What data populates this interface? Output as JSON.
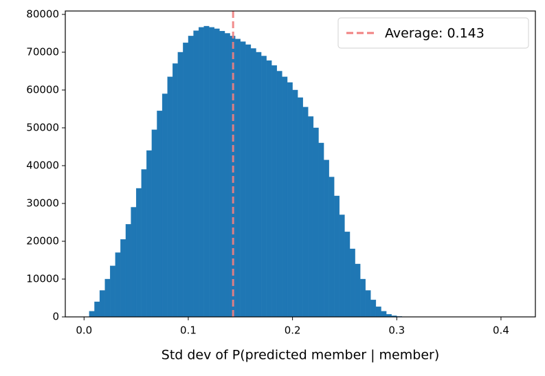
{
  "chart_data": {
    "type": "histogram",
    "x_label": "Std dev of P(predicted member | member)",
    "bins": [
      0.005,
      0.01,
      0.015,
      0.02,
      0.025,
      0.03,
      0.035,
      0.04,
      0.045,
      0.05,
      0.055,
      0.06,
      0.065,
      0.07,
      0.075,
      0.08,
      0.085,
      0.09,
      0.095,
      0.1,
      0.105,
      0.11,
      0.115,
      0.12,
      0.125,
      0.13,
      0.135,
      0.14,
      0.145,
      0.15,
      0.155,
      0.16,
      0.165,
      0.17,
      0.175,
      0.18,
      0.185,
      0.19,
      0.195,
      0.2,
      0.205,
      0.21,
      0.215,
      0.22,
      0.225,
      0.23,
      0.235,
      0.24,
      0.245,
      0.25,
      0.255,
      0.26,
      0.265,
      0.27,
      0.275,
      0.28,
      0.285,
      0.29,
      0.295,
      0.3,
      0.305,
      0.31
    ],
    "values": [
      1500,
      4000,
      7000,
      10000,
      13500,
      17000,
      20500,
      24500,
      29000,
      34000,
      39000,
      44000,
      49500,
      54500,
      59000,
      63500,
      67000,
      70000,
      72500,
      74300,
      75700,
      76600,
      76900,
      76600,
      76200,
      75600,
      75000,
      74300,
      73500,
      72800,
      72000,
      71000,
      70000,
      69000,
      67800,
      66500,
      65000,
      63500,
      62000,
      60000,
      58000,
      55500,
      53000,
      50000,
      46000,
      41500,
      37000,
      32000,
      27000,
      22500,
      18000,
      14000,
      10000,
      7000,
      4500,
      2700,
      1500,
      700,
      300,
      120,
      40
    ],
    "color": "#1f77b4",
    "average_line": {
      "value": 0.143,
      "label": "Average: 0.143",
      "color": "#f08080"
    },
    "legend": "upper right",
    "xlim": [
      -0.018,
      0.433
    ],
    "xticks": [
      {
        "value": 0,
        "label": "0.0"
      },
      0.1,
      0.2,
      0.3,
      0.4
    ],
    "ylim": [
      0,
      80900
    ],
    "yticks": [
      0,
      10000,
      20000,
      30000,
      40000,
      50000,
      60000,
      70000,
      80000
    ]
  }
}
